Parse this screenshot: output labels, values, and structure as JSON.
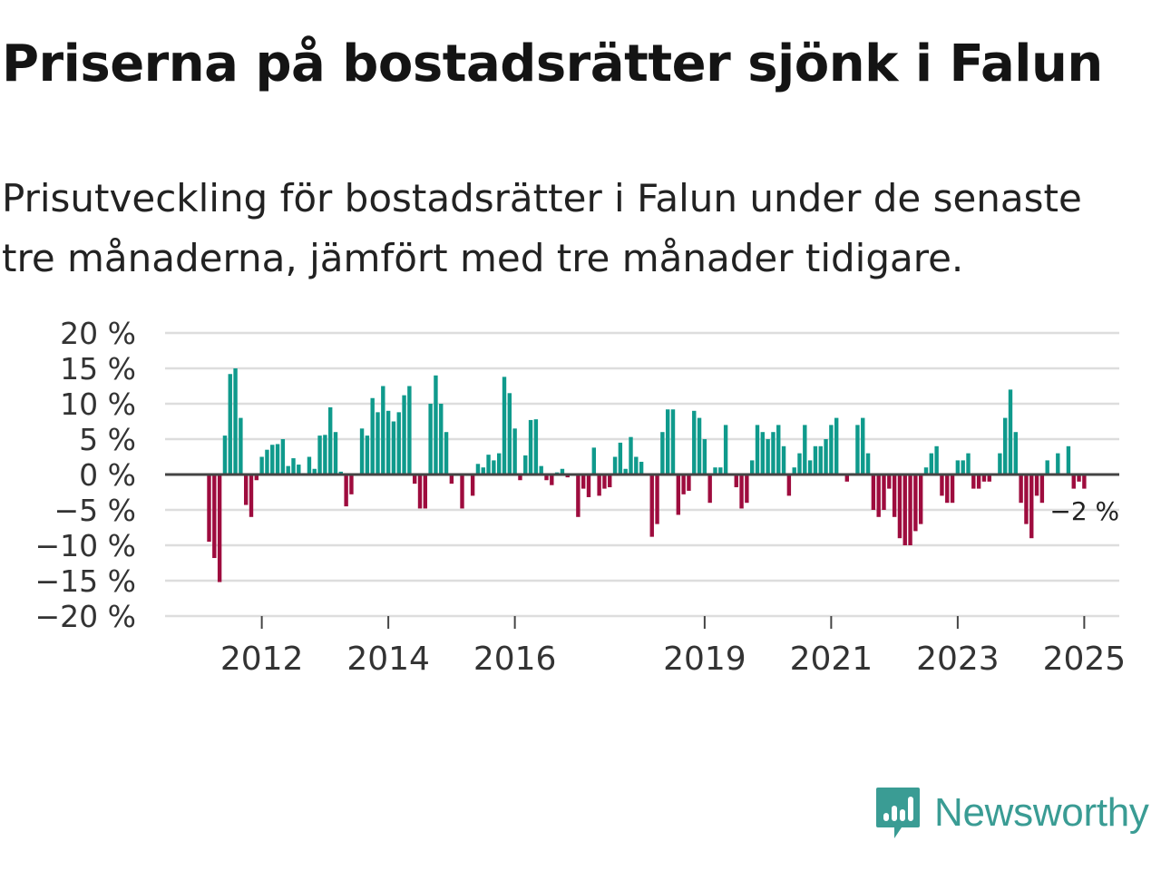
{
  "title": "Priserna på bostadsrätter sjönk i Falun",
  "subtitle": "Prisutveckling för bostadsrätter i Falun under de senaste tre månaderna, jämfört med tre månader tidigare.",
  "brand": {
    "name": "Newsworthy",
    "icon": "newsworthy-logo-icon",
    "color": "#3a9c94"
  },
  "colors": {
    "positive": "#0f9a8c",
    "negative": "#9e0c3e",
    "grid": "#dddddd",
    "zero": "#444444"
  },
  "chart_data": {
    "type": "bar",
    "title": "Priserna på bostadsrätter sjönk i Falun",
    "xlabel": "",
    "ylabel": "",
    "ylim": [
      -20,
      20
    ],
    "y_ticks": [
      20,
      15,
      10,
      5,
      0,
      -5,
      -10,
      -15,
      -20
    ],
    "y_tick_labels": [
      "20 %",
      "15 %",
      "10 %",
      "5 %",
      "0 %",
      "−5 %",
      "−10 %",
      "−15 %",
      "−20 %"
    ],
    "x_ticks": [
      {
        "label": "2012",
        "year": 2012
      },
      {
        "label": "2014",
        "year": 2014
      },
      {
        "label": "2016",
        "year": 2016
      },
      {
        "label": "2019",
        "year": 2019
      },
      {
        "label": "2021",
        "year": 2021
      },
      {
        "label": "2023",
        "year": 2023
      },
      {
        "label": "2025",
        "year": 2025
      }
    ],
    "x_start": "2011-03",
    "frequency": "monthly",
    "last_value_label": "−2 %",
    "values": [
      -9.5,
      -11.8,
      -15.2,
      5.5,
      14.2,
      15.0,
      8.0,
      -4.3,
      -6.0,
      -0.8,
      2.5,
      3.5,
      4.2,
      4.3,
      5.0,
      1.2,
      2.3,
      1.4,
      0.2,
      2.5,
      0.8,
      5.5,
      5.6,
      9.5,
      6.0,
      0.4,
      -4.5,
      -2.8,
      0.1,
      6.5,
      5.5,
      10.8,
      8.8,
      12.5,
      9.0,
      7.5,
      8.8,
      11.2,
      12.5,
      -1.3,
      -4.8,
      -4.8,
      10.0,
      14.0,
      10.0,
      6.0,
      -1.3,
      0.1,
      -4.8,
      0.1,
      -3.0,
      1.5,
      1.0,
      2.8,
      2.0,
      3.0,
      13.8,
      11.5,
      6.5,
      -0.8,
      2.7,
      7.7,
      7.8,
      1.2,
      -0.8,
      -1.5,
      0.3,
      0.8,
      -0.4,
      0.1,
      -6.0,
      -2.0,
      -3.2,
      3.8,
      -3.0,
      -2.0,
      -1.8,
      2.5,
      4.5,
      0.8,
      5.3,
      2.5,
      1.8,
      0.1,
      -8.8,
      -7.0,
      6.0,
      9.2,
      9.2,
      -5.7,
      -2.8,
      -2.3,
      9.0,
      8.0,
      5.0,
      -4.0,
      1.0,
      1.0,
      7.0,
      0.1,
      -1.8,
      -4.8,
      -4.0,
      2.0,
      7.0,
      6.0,
      5.0,
      6.0,
      7.0,
      4.0,
      -3.0,
      1.0,
      3.0,
      7.0,
      2.0,
      4.0,
      4.0,
      5.0,
      7.0,
      8.0,
      0.1,
      -1.0,
      0.2,
      7.0,
      8.0,
      3.0,
      -5.0,
      -6.0,
      -5.0,
      -2.0,
      -6.0,
      -9.0,
      -10.0,
      -10.0,
      -8.0,
      -7.0,
      1.0,
      3.0,
      4.0,
      -3.0,
      -4.0,
      -4.0,
      2.0,
      2.0,
      3.0,
      -2.0,
      -2.0,
      -1.0,
      -1.0,
      0.1,
      3.0,
      8.0,
      12.0,
      6.0,
      -4.0,
      -7.0,
      -9.0,
      -3.0,
      -4.0,
      2.0,
      0.1,
      3.0,
      0.1,
      4.0,
      -2.0,
      -1.0,
      -2.0
    ]
  }
}
